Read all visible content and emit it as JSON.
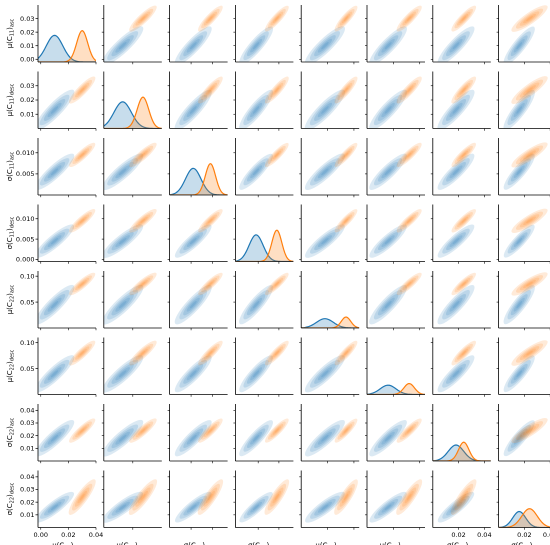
{
  "chart_data": {
    "type": "pairplot",
    "title": "",
    "variables": [
      {
        "key": "mu_c11_asc",
        "base": "μ(C",
        "sub1": "11",
        "sub2": "asc",
        "ticks": [
          0.0,
          0.01,
          0.02,
          0.03
        ],
        "tick_labels": [
          "0.00",
          "0.01",
          "0.02",
          "0.03"
        ],
        "range": [
          -0.002,
          0.04
        ]
      },
      {
        "key": "mu_c11_desc",
        "base": "μ(C",
        "sub1": "11",
        "sub2": "desc",
        "ticks": [
          0.01,
          0.02,
          0.03
        ],
        "tick_labels": [
          "0.01",
          "0.02",
          "0.03"
        ],
        "range": [
          0.0,
          0.04
        ]
      },
      {
        "key": "sigma_c11_asc",
        "base": "σ(C",
        "sub1": "11",
        "sub2": "asc",
        "ticks": [
          0.005,
          0.01
        ],
        "tick_labels": [
          "0.005",
          "0.010"
        ],
        "range": [
          0.0,
          0.0135
        ]
      },
      {
        "key": "sigma_c11_desc",
        "base": "σ(C",
        "sub1": "11",
        "sub2": "desc",
        "ticks": [
          0.0,
          0.005,
          0.01
        ],
        "tick_labels": [
          "0.000",
          "0.005",
          "0.010"
        ],
        "range": [
          -0.0005,
          0.0135
        ]
      },
      {
        "key": "mu_c22_asc",
        "base": "μ(C",
        "sub1": "22",
        "sub2": "asc",
        "ticks": [
          0.05,
          0.1
        ],
        "tick_labels": [
          "0.05",
          "0.10"
        ],
        "range": [
          0.0,
          0.11
        ]
      },
      {
        "key": "mu_c22_desc",
        "base": "μ(C",
        "sub1": "22",
        "sub2": "desc",
        "ticks": [
          0.05,
          0.1
        ],
        "tick_labels": [
          "0.05",
          "0.10"
        ],
        "range": [
          0.0,
          0.11
        ]
      },
      {
        "key": "sigma_c22_asc",
        "base": "σ(C",
        "sub1": "22",
        "sub2": "asc",
        "ticks": [
          0.01,
          0.02,
          0.03,
          0.04
        ],
        "tick_labels": [
          "0.01",
          "0.02",
          "0.03",
          "0.04"
        ],
        "range": [
          0.0,
          0.045
        ]
      },
      {
        "key": "sigma_c22_desc",
        "base": "σ(C",
        "sub1": "22",
        "sub2": "desc",
        "ticks": [
          0.01,
          0.02,
          0.03,
          0.04
        ],
        "tick_labels": [
          "0.01",
          "0.02",
          "0.03",
          "0.04"
        ],
        "range": [
          0.0,
          0.045
        ]
      }
    ],
    "x_axis_ticks": [
      {
        "ticks": [
          0.0,
          0.02,
          0.04
        ],
        "tick_labels": [
          "0.00",
          "0.02",
          "0.04"
        ]
      },
      {
        "ticks": [
          0.02
        ],
        "tick_labels": [
          ""
        ]
      },
      {
        "ticks": [
          0.005,
          0.01
        ],
        "tick_labels": [
          "",
          ""
        ]
      },
      {
        "ticks": [
          0.005,
          0.01
        ],
        "tick_labels": [
          "",
          ""
        ]
      },
      {
        "ticks": [
          0.05,
          0.1
        ],
        "tick_labels": [
          "",
          ""
        ]
      },
      {
        "ticks": [
          0.05,
          0.1
        ],
        "tick_labels": [
          "",
          ""
        ]
      },
      {
        "ticks": [
          0.02,
          0.04
        ],
        "tick_labels": [
          "0.02",
          "0.04"
        ]
      },
      {
        "ticks": [
          0.02,
          0.04
        ],
        "tick_labels": [
          "0.02",
          "0.04"
        ]
      }
    ],
    "groups": [
      {
        "color": "#1f77b4",
        "means": [
          0.01,
          0.013,
          0.0055,
          0.0045,
          0.045,
          0.04,
          0.018,
          0.016
        ],
        "stds": [
          0.006,
          0.006,
          0.0018,
          0.0017,
          0.016,
          0.015,
          0.006,
          0.005
        ]
      },
      {
        "color": "#ff7f0e",
        "means": [
          0.03,
          0.027,
          0.0095,
          0.0095,
          0.085,
          0.08,
          0.024,
          0.024
        ],
        "stds": [
          0.004,
          0.004,
          0.0012,
          0.0012,
          0.009,
          0.01,
          0.004,
          0.006
        ]
      }
    ],
    "correlation": 0.85,
    "diag_ylim": [
      0,
      1
    ],
    "grid": false,
    "legend": "none"
  }
}
